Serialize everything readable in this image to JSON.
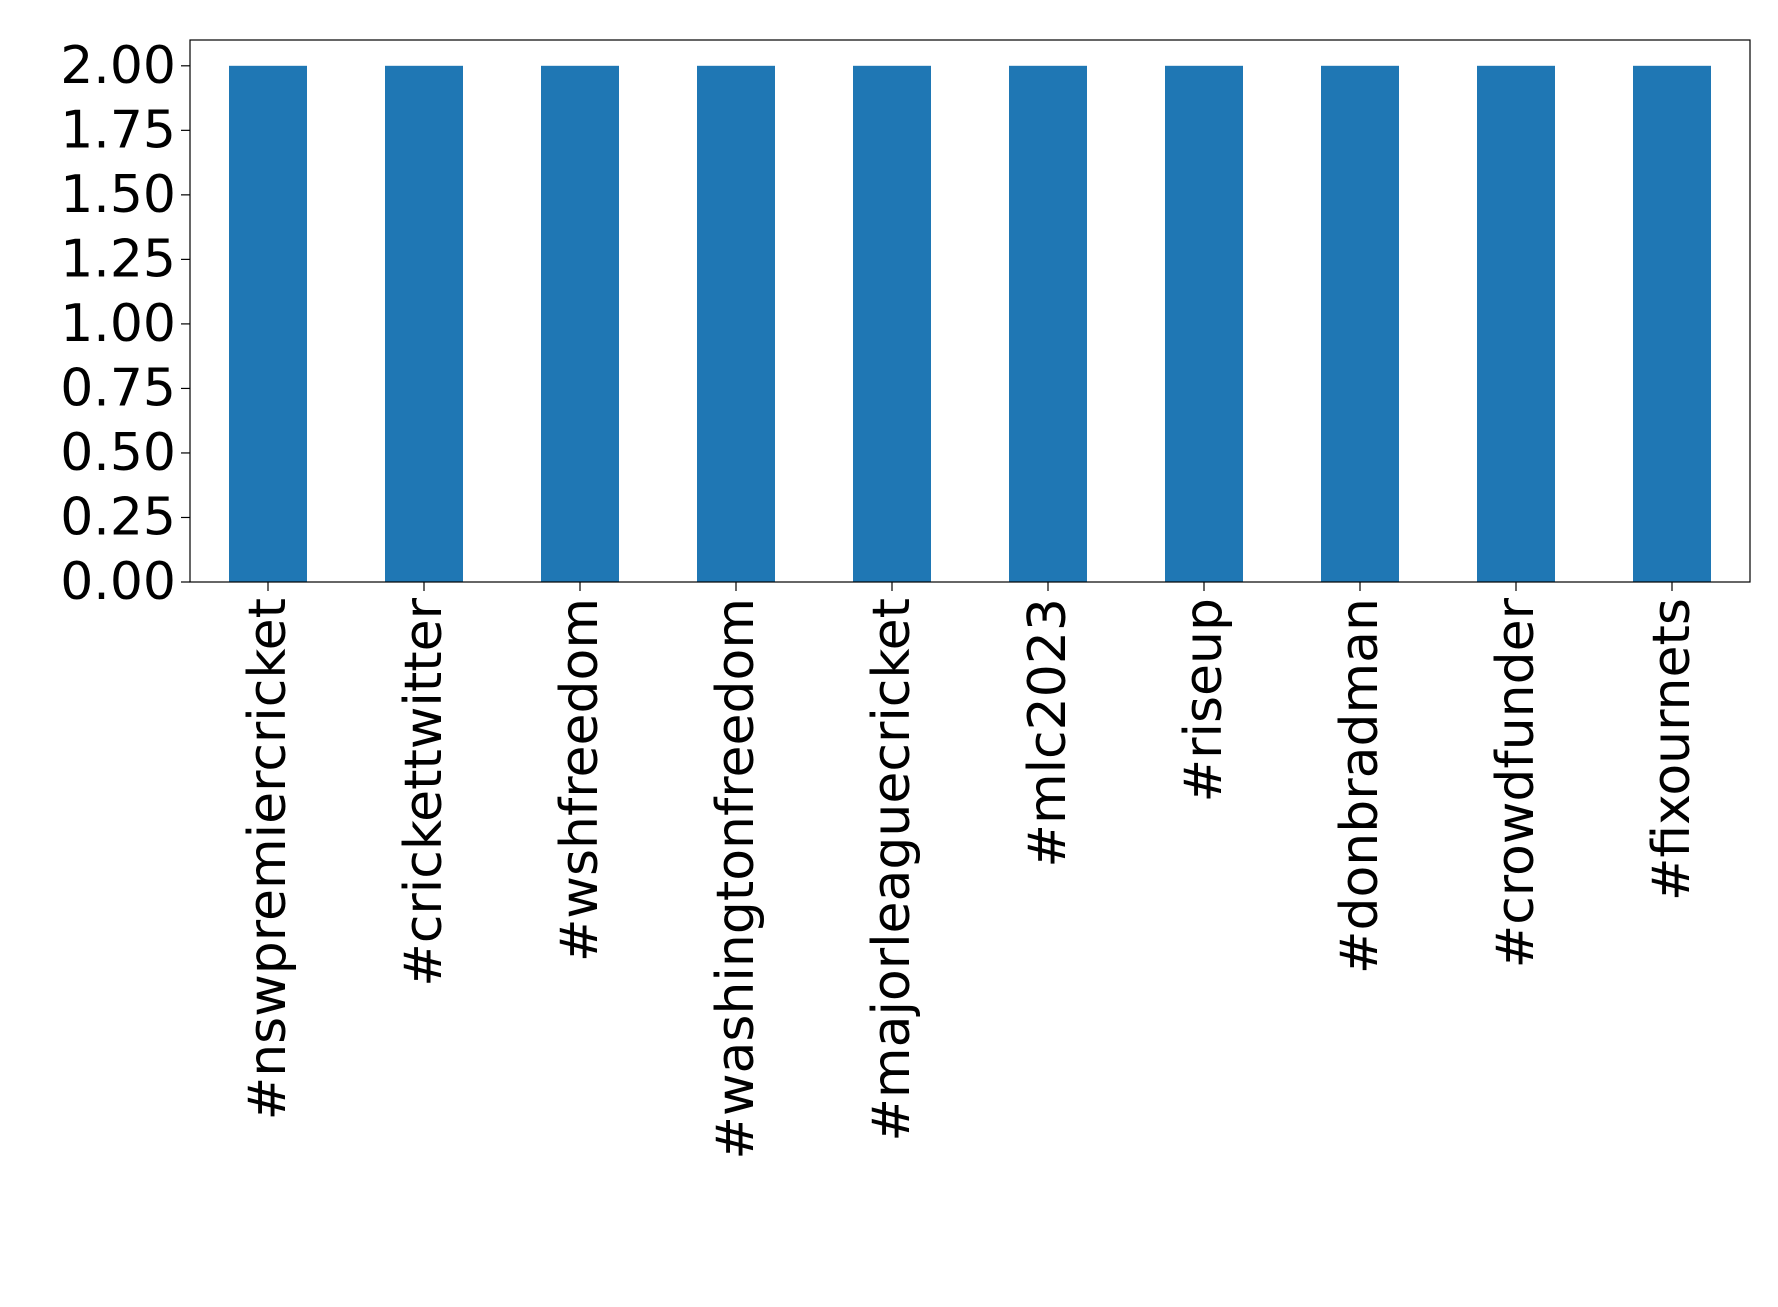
{
  "chart_data": {
    "type": "bar",
    "title": "",
    "xlabel": "",
    "ylabel": "",
    "categories": [
      "#nswpremiercricket",
      "#crickettwitter",
      "#wshfreedom",
      "#washingtonfreedom",
      "#majorleaguecricket",
      "#mlc2023",
      "#riseup",
      "#donbradman",
      "#crowdfunder",
      "#fixournets"
    ],
    "values": [
      2,
      2,
      2,
      2,
      2,
      2,
      2,
      2,
      2,
      2
    ],
    "ylim": [
      0,
      2.1
    ],
    "yticks": [
      "0.00",
      "0.25",
      "0.50",
      "0.75",
      "1.00",
      "1.25",
      "1.50",
      "1.75",
      "2.00"
    ],
    "ytick_values": [
      0,
      0.25,
      0.5,
      0.75,
      1.0,
      1.25,
      1.5,
      1.75,
      2.0
    ],
    "grid": false,
    "legend": "none",
    "colors": {
      "bar": "#1f77b4",
      "axis": "#000000",
      "background": "#ffffff"
    }
  }
}
